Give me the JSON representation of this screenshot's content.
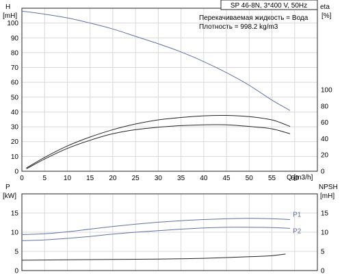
{
  "chart_data": {
    "top": {
      "title": "SP 46-8N, 3*400 V, 50Hz",
      "info_liquid": "Перекачиваемая жидкость = Вода",
      "info_density": "Плотность = 998.2 kg/m3",
      "left_axis_label": [
        "H",
        "[mH]"
      ],
      "right_axis_label": [
        "eta",
        "[%]"
      ],
      "x_axis_label": "Q [m3/h]",
      "xlim": [
        0,
        65
      ],
      "x_ticks": [
        0,
        5,
        10,
        15,
        20,
        25,
        30,
        35,
        40,
        45,
        50,
        55,
        60
      ],
      "h_ylim": [
        0,
        110
      ],
      "h_ticks": [
        0,
        10,
        20,
        30,
        40,
        50,
        60,
        70,
        80,
        90,
        100
      ],
      "eta_ylim": [
        0,
        200
      ],
      "eta_ticks": [
        0,
        20,
        40,
        60,
        80,
        100
      ],
      "series": [
        {
          "axis": "H",
          "color": "#6070a0",
          "x": [
            0,
            5,
            10,
            15,
            20,
            25,
            30,
            35,
            40,
            45,
            50,
            55,
            59
          ],
          "y": [
            108,
            106,
            103.5,
            100,
            96,
            91,
            86,
            80.5,
            74,
            66.5,
            58,
            48,
            41
          ]
        },
        {
          "axis": "eta",
          "color": "#222222",
          "x": [
            1,
            5,
            10,
            15,
            20,
            25,
            30,
            35,
            40,
            45,
            50,
            55,
            59
          ],
          "y": [
            4,
            17,
            31,
            42,
            51,
            58,
            63,
            66,
            68,
            68.5,
            67,
            63,
            55
          ]
        },
        {
          "axis": "eta",
          "color": "#222222",
          "x": [
            1,
            5,
            10,
            15,
            20,
            25,
            30,
            35,
            40,
            45,
            50,
            55,
            59
          ],
          "y": [
            3,
            15,
            28,
            38,
            46,
            51,
            54,
            56,
            57,
            57,
            55,
            52,
            46
          ]
        }
      ]
    },
    "bottom": {
      "left_axis_label": [
        "P",
        "[kW]"
      ],
      "right_axis_label": [
        "NPSH",
        "[mH]"
      ],
      "xlim": [
        0,
        65
      ],
      "p_ylim": [
        0,
        20
      ],
      "p_ticks": [
        0,
        5,
        10,
        15
      ],
      "npsh_ylim": [
        0,
        20
      ],
      "npsh_ticks": [
        0,
        5,
        10,
        15
      ],
      "series": [
        {
          "name": "P1",
          "axis": "P",
          "color": "#6070a0",
          "x": [
            0,
            5,
            10,
            15,
            20,
            25,
            30,
            35,
            40,
            45,
            50,
            55,
            59
          ],
          "y": [
            9.4,
            9.6,
            10.1,
            10.8,
            11.5,
            12.1,
            12.6,
            13.0,
            13.3,
            13.5,
            13.6,
            13.5,
            13.3
          ]
        },
        {
          "name": "P2",
          "axis": "P",
          "color": "#6070a0",
          "x": [
            0,
            5,
            10,
            15,
            20,
            25,
            30,
            35,
            40,
            45,
            50,
            55,
            59
          ],
          "y": [
            7.8,
            8.0,
            8.4,
            8.9,
            9.5,
            10.0,
            10.4,
            10.8,
            11.1,
            11.3,
            11.3,
            11.2,
            11.0
          ]
        },
        {
          "axis": "NPSH",
          "color": "#222222",
          "x": [
            0,
            10,
            20,
            30,
            40,
            50,
            55,
            58
          ],
          "y": [
            2.7,
            2.8,
            2.9,
            3.0,
            3.2,
            3.6,
            3.9,
            4.3
          ]
        }
      ]
    }
  }
}
